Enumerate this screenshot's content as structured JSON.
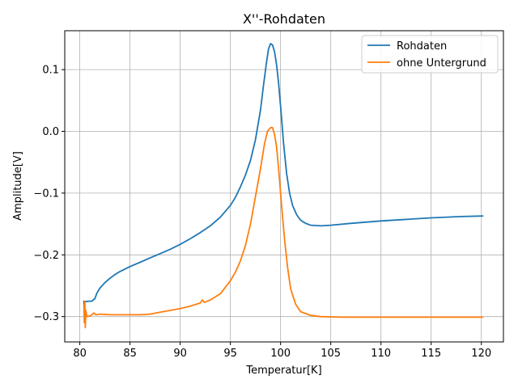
{
  "chart_data": {
    "type": "line",
    "title": "X''-Rohdaten",
    "xlabel": "Temperatur[K]",
    "ylabel": "Amplitude[V]",
    "xlim": [
      78.5,
      122.2
    ],
    "ylim": [
      -0.341,
      0.163
    ],
    "xticks": [
      80,
      85,
      90,
      95,
      100,
      105,
      110,
      115,
      120
    ],
    "xtick_labels": [
      "80",
      "85",
      "90",
      "95",
      "100",
      "105",
      "110",
      "115",
      "120"
    ],
    "yticks": [
      -0.3,
      -0.2,
      -0.1,
      0.0,
      0.1
    ],
    "ytick_labels": [
      "−0.3",
      "−0.2",
      "−0.1",
      "0.0",
      "0.1"
    ],
    "grid": true,
    "legend_position": "top-right",
    "series": [
      {
        "name": "Rohdaten",
        "color": "#1f77b4",
        "points": [
          [
            80.5,
            -0.29
          ],
          [
            80.4,
            -0.275
          ],
          [
            80.6,
            -0.276
          ],
          [
            80.8,
            -0.275
          ],
          [
            81.2,
            -0.275
          ],
          [
            81.5,
            -0.271
          ],
          [
            81.7,
            -0.262
          ],
          [
            82.0,
            -0.254
          ],
          [
            82.5,
            -0.245
          ],
          [
            83.0,
            -0.238
          ],
          [
            83.5,
            -0.232
          ],
          [
            84.0,
            -0.227
          ],
          [
            85.0,
            -0.219
          ],
          [
            86.0,
            -0.212
          ],
          [
            87.0,
            -0.205
          ],
          [
            88.0,
            -0.198
          ],
          [
            89.0,
            -0.191
          ],
          [
            90.0,
            -0.183
          ],
          [
            91.0,
            -0.174
          ],
          [
            92.0,
            -0.164
          ],
          [
            93.0,
            -0.153
          ],
          [
            94.0,
            -0.139
          ],
          [
            95.0,
            -0.12
          ],
          [
            95.5,
            -0.107
          ],
          [
            96.0,
            -0.09
          ],
          [
            96.5,
            -0.071
          ],
          [
            97.0,
            -0.047
          ],
          [
            97.5,
            -0.013
          ],
          [
            98.0,
            0.035
          ],
          [
            98.3,
            0.075
          ],
          [
            98.6,
            0.112
          ],
          [
            98.8,
            0.134
          ],
          [
            99.0,
            0.142
          ],
          [
            99.2,
            0.14
          ],
          [
            99.4,
            0.129
          ],
          [
            99.6,
            0.108
          ],
          [
            99.8,
            0.078
          ],
          [
            100.0,
            0.04
          ],
          [
            100.3,
            -0.02
          ],
          [
            100.6,
            -0.068
          ],
          [
            100.9,
            -0.1
          ],
          [
            101.2,
            -0.12
          ],
          [
            101.6,
            -0.135
          ],
          [
            102.0,
            -0.144
          ],
          [
            102.5,
            -0.149
          ],
          [
            103.0,
            -0.152
          ],
          [
            104.0,
            -0.153
          ],
          [
            105.0,
            -0.152
          ],
          [
            107.0,
            -0.149
          ],
          [
            110.0,
            -0.145
          ],
          [
            112.0,
            -0.143
          ],
          [
            115.0,
            -0.14
          ],
          [
            118.0,
            -0.138
          ],
          [
            120.2,
            -0.137
          ]
        ]
      },
      {
        "name": "ohne Untergrund",
        "color": "#ff7f0e",
        "points": [
          [
            80.4,
            -0.28
          ],
          [
            80.45,
            -0.31
          ],
          [
            80.5,
            -0.275
          ],
          [
            80.55,
            -0.318
          ],
          [
            80.6,
            -0.29
          ],
          [
            80.7,
            -0.3
          ],
          [
            81.0,
            -0.299
          ],
          [
            81.2,
            -0.297
          ],
          [
            81.4,
            -0.294
          ],
          [
            81.6,
            -0.297
          ],
          [
            82.0,
            -0.296
          ],
          [
            83.0,
            -0.297
          ],
          [
            84.0,
            -0.297
          ],
          [
            85.0,
            -0.297
          ],
          [
            86.0,
            -0.297
          ],
          [
            87.0,
            -0.296
          ],
          [
            88.0,
            -0.293
          ],
          [
            89.0,
            -0.29
          ],
          [
            90.0,
            -0.287
          ],
          [
            91.0,
            -0.283
          ],
          [
            92.0,
            -0.278
          ],
          [
            92.2,
            -0.273
          ],
          [
            92.4,
            -0.277
          ],
          [
            93.0,
            -0.273
          ],
          [
            94.0,
            -0.263
          ],
          [
            95.0,
            -0.242
          ],
          [
            95.5,
            -0.228
          ],
          [
            96.0,
            -0.21
          ],
          [
            96.5,
            -0.185
          ],
          [
            97.0,
            -0.15
          ],
          [
            97.5,
            -0.105
          ],
          [
            98.0,
            -0.06
          ],
          [
            98.4,
            -0.02
          ],
          [
            98.7,
            0.0
          ],
          [
            99.0,
            0.006
          ],
          [
            99.2,
            0.006
          ],
          [
            99.4,
            -0.005
          ],
          [
            99.6,
            -0.025
          ],
          [
            99.8,
            -0.06
          ],
          [
            100.1,
            -0.12
          ],
          [
            100.4,
            -0.175
          ],
          [
            100.7,
            -0.22
          ],
          [
            101.0,
            -0.255
          ],
          [
            101.5,
            -0.28
          ],
          [
            102.0,
            -0.292
          ],
          [
            103.0,
            -0.298
          ],
          [
            104.0,
            -0.3
          ],
          [
            106.0,
            -0.301
          ],
          [
            110.0,
            -0.301
          ],
          [
            115.0,
            -0.301
          ],
          [
            120.2,
            -0.301
          ]
        ]
      }
    ]
  }
}
